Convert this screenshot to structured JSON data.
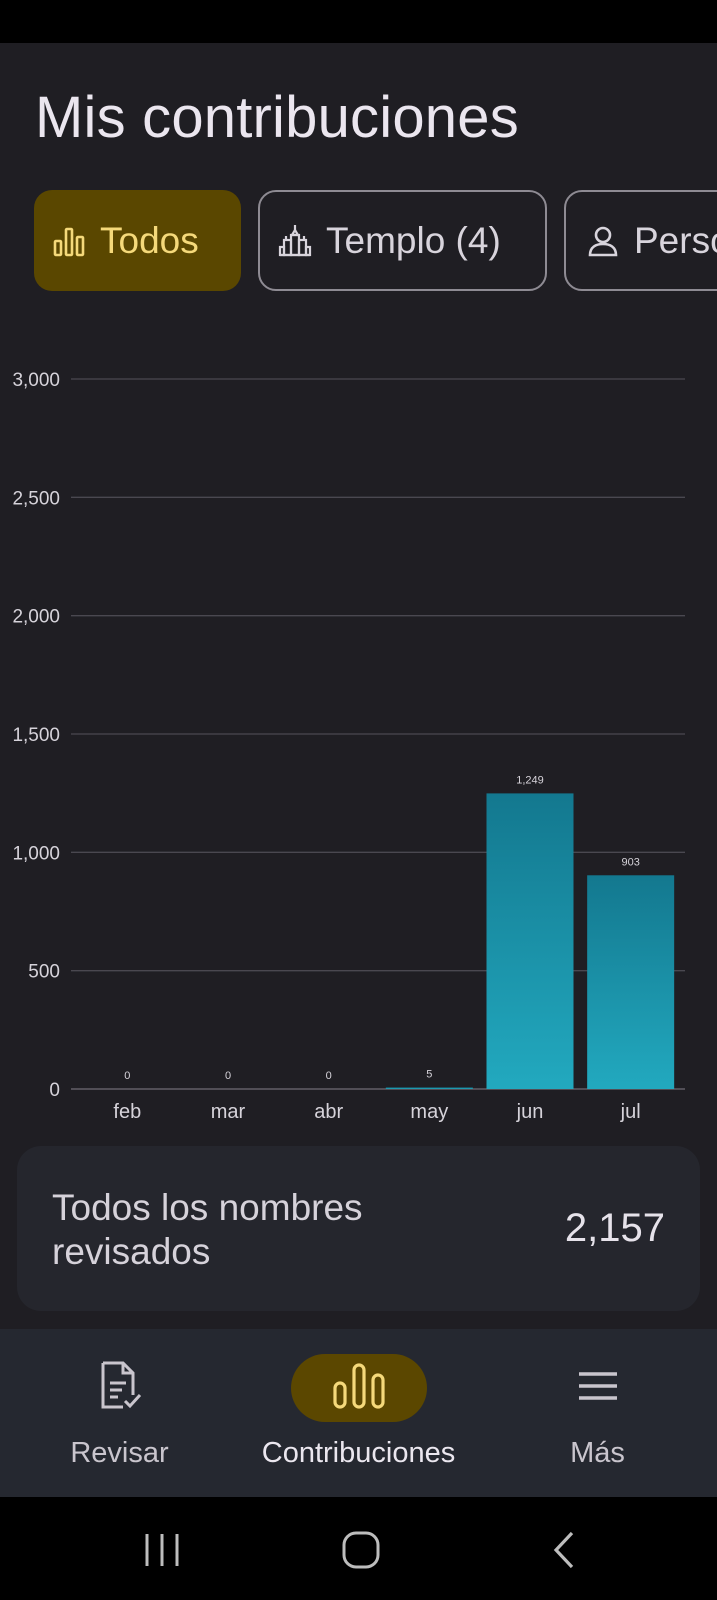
{
  "header": {
    "title": "Mis contribuciones"
  },
  "filters": [
    {
      "label": "Todos",
      "icon": "bar-chart-icon",
      "selected": true
    },
    {
      "label": "Templo (4)",
      "icon": "temple-icon",
      "selected": false
    },
    {
      "label": "Perso",
      "icon": "person-icon",
      "selected": false
    }
  ],
  "chart_data": {
    "type": "bar",
    "categories": [
      "feb",
      "mar",
      "abr",
      "may",
      "jun",
      "jul"
    ],
    "values": [
      0,
      0,
      0,
      5,
      1249,
      903
    ],
    "value_labels": [
      "0",
      "0",
      "0",
      "5",
      "1,249",
      "903"
    ],
    "y_ticks": [
      0,
      500,
      1000,
      1500,
      2000,
      2500,
      3000
    ],
    "y_tick_labels": [
      "0",
      "500",
      "1,000",
      "1,500",
      "2,000",
      "2,500",
      "3,000"
    ],
    "ylim": [
      0,
      3000
    ],
    "grid": true,
    "bar_color_top": "#13788f",
    "bar_color_bottom": "#22a9bf"
  },
  "summary": {
    "label": "Todos los nombres revisados",
    "value": "2,157"
  },
  "bottom_nav": {
    "items": [
      {
        "label": "Revisar",
        "icon": "document-check-icon",
        "active": false
      },
      {
        "label": "Contribuciones",
        "icon": "bar-chart-icon",
        "active": true
      },
      {
        "label": "Más",
        "icon": "menu-icon",
        "active": false
      }
    ]
  },
  "colors": {
    "background": "#1f1e23",
    "accent": "#5a4700",
    "accent_text": "#f5d97a",
    "card": "#25262d"
  }
}
